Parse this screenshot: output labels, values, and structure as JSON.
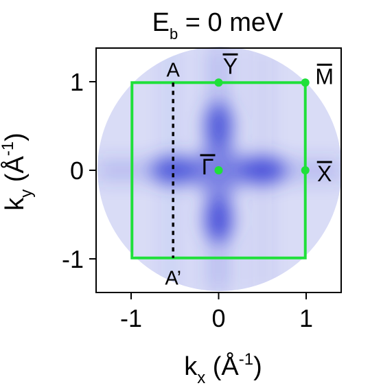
{
  "chart_data": {
    "type": "heatmap",
    "title": {
      "prefix": "E",
      "sub": "b",
      "suffix": " = 0 meV"
    },
    "xlabel": {
      "k": "k",
      "sub": "x",
      "unit": " (Å",
      "sup": "-1",
      "close": ")"
    },
    "ylabel": {
      "k": "k",
      "sub": "y",
      "unit": " (Å",
      "sup": "-1",
      "close": ")"
    },
    "xlim": [
      -1.4,
      1.4
    ],
    "ylim": [
      -1.38,
      1.38
    ],
    "xticks": [
      {
        "v": -1,
        "label": "-1"
      },
      {
        "v": 0,
        "label": "0"
      },
      {
        "v": 1,
        "label": "1"
      }
    ],
    "yticks": [
      {
        "v": -1,
        "label": "-1"
      },
      {
        "v": 0,
        "label": "0"
      },
      {
        "v": 1,
        "label": "1"
      }
    ],
    "colormap": {
      "low": "#ffffff",
      "high": "#3b44d6"
    },
    "brillouin_zone": {
      "xmin": -0.99,
      "xmax": 0.99,
      "ymin": -0.99,
      "ymax": 0.99,
      "color": "#1fe03a"
    },
    "high_symmetry_points": [
      {
        "name": "Γ",
        "x": 0,
        "y": 0
      },
      {
        "name": "Y",
        "x": 0,
        "y": 0.99
      },
      {
        "name": "M",
        "x": 0.99,
        "y": 0.99
      },
      {
        "name": "X",
        "x": 0.99,
        "y": 0
      }
    ],
    "cut": {
      "start_label": "A",
      "end_label": "A’",
      "x": -0.52,
      "y_from": 0.99,
      "y_to": -0.99,
      "style": "dotted"
    },
    "intensity_features": [
      {
        "x": 0,
        "y": 0.5,
        "level": 0.85
      },
      {
        "x": 0,
        "y": -0.55,
        "level": 0.9
      },
      {
        "x": -0.5,
        "y": 0,
        "level": 0.85
      },
      {
        "x": 0.5,
        "y": 0,
        "level": 0.9
      }
    ],
    "grid": false,
    "legend": "none"
  }
}
